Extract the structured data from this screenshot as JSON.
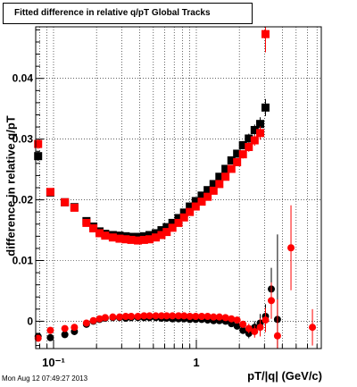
{
  "chart_data": {
    "type": "scatter",
    "title": "Fitted difference in relative q/pT  Global Tracks",
    "xlabel": "pT/|q| (GeV/c)",
    "ylabel": "difference in relative q/pT",
    "x_scale": "log",
    "xlim": [
      0.075,
      7.5
    ],
    "ylim": [
      -0.0045,
      0.0485
    ],
    "x_ticks": [
      {
        "value": 0.1,
        "label": "10⁻¹"
      },
      {
        "value": 1,
        "label": "1"
      }
    ],
    "y_ticks": [
      {
        "value": 0,
        "label": "0"
      },
      {
        "value": 0.01,
        "label": "0.01"
      },
      {
        "value": 0.02,
        "label": "0.02"
      },
      {
        "value": 0.03,
        "label": "0.03"
      },
      {
        "value": 0.04,
        "label": "0.04"
      }
    ],
    "grid": true,
    "colors": {
      "black_series": "#000000",
      "red_series": "#ff0000"
    },
    "series": [
      {
        "marker": "square",
        "color": "#000000",
        "points": [
          [
            0.078,
            0.0272,
            0.0008
          ],
          [
            0.095,
            0.0212,
            0.0004
          ],
          [
            0.12,
            0.0196,
            0.0003
          ],
          [
            0.14,
            0.0188,
            0.0003
          ],
          [
            0.17,
            0.0165,
            0.0002
          ],
          [
            0.19,
            0.0156,
            0.0002
          ],
          [
            0.21,
            0.0148,
            0.0002
          ],
          [
            0.23,
            0.0144,
            0.0002
          ],
          [
            0.26,
            0.0142,
            0.0002
          ],
          [
            0.29,
            0.0141,
            0.0002
          ],
          [
            0.32,
            0.014,
            0.0002
          ],
          [
            0.35,
            0.0139,
            0.0002
          ],
          [
            0.39,
            0.0139,
            0.0002
          ],
          [
            0.43,
            0.014,
            0.0002
          ],
          [
            0.47,
            0.0142,
            0.0002
          ],
          [
            0.52,
            0.0145,
            0.0002
          ],
          [
            0.57,
            0.015,
            0.0002
          ],
          [
            0.62,
            0.0155,
            0.0002
          ],
          [
            0.68,
            0.0162,
            0.0002
          ],
          [
            0.75,
            0.017,
            0.0002
          ],
          [
            0.82,
            0.0179,
            0.0002
          ],
          [
            0.9,
            0.0189,
            0.0002
          ],
          [
            0.99,
            0.0198,
            0.0003
          ],
          [
            1.09,
            0.0207,
            0.0003
          ],
          [
            1.2,
            0.0216,
            0.0003
          ],
          [
            1.32,
            0.0226,
            0.0003
          ],
          [
            1.45,
            0.0238,
            0.0003
          ],
          [
            1.6,
            0.0251,
            0.0004
          ],
          [
            1.76,
            0.0265,
            0.0005
          ],
          [
            1.93,
            0.0276,
            0.0006
          ],
          [
            2.12,
            0.029,
            0.0007
          ],
          [
            2.33,
            0.0301,
            0.0008
          ],
          [
            2.56,
            0.0315,
            0.0009
          ],
          [
            2.8,
            0.0325,
            0.0011
          ],
          [
            3.05,
            0.0352,
            0.0014
          ]
        ]
      },
      {
        "marker": "square",
        "color": "#ff0000",
        "points": [
          [
            0.078,
            0.0292,
            0.0008
          ],
          [
            0.095,
            0.0213,
            0.0004
          ],
          [
            0.12,
            0.0196,
            0.0003
          ],
          [
            0.14,
            0.0187,
            0.0003
          ],
          [
            0.17,
            0.0162,
            0.0002
          ],
          [
            0.19,
            0.0153,
            0.0002
          ],
          [
            0.21,
            0.0145,
            0.0002
          ],
          [
            0.23,
            0.0141,
            0.0002
          ],
          [
            0.26,
            0.0138,
            0.0002
          ],
          [
            0.29,
            0.0136,
            0.0002
          ],
          [
            0.32,
            0.0135,
            0.0002
          ],
          [
            0.35,
            0.0134,
            0.0002
          ],
          [
            0.39,
            0.0133,
            0.0002
          ],
          [
            0.43,
            0.0134,
            0.0002
          ],
          [
            0.47,
            0.0135,
            0.0002
          ],
          [
            0.52,
            0.0138,
            0.0002
          ],
          [
            0.57,
            0.0142,
            0.0002
          ],
          [
            0.62,
            0.0147,
            0.0002
          ],
          [
            0.68,
            0.0154,
            0.0002
          ],
          [
            0.75,
            0.0162,
            0.0002
          ],
          [
            0.82,
            0.0171,
            0.0002
          ],
          [
            0.9,
            0.018,
            0.0002
          ],
          [
            0.99,
            0.0189,
            0.0003
          ],
          [
            1.09,
            0.0197,
            0.0003
          ],
          [
            1.2,
            0.0205,
            0.0003
          ],
          [
            1.32,
            0.0215,
            0.0003
          ],
          [
            1.45,
            0.0226,
            0.0003
          ],
          [
            1.6,
            0.0238,
            0.0004
          ],
          [
            1.76,
            0.0251,
            0.0005
          ],
          [
            1.93,
            0.0262,
            0.0006
          ],
          [
            2.12,
            0.0275,
            0.0007
          ],
          [
            2.33,
            0.0287,
            0.0008
          ],
          [
            2.56,
            0.0298,
            0.0009
          ],
          [
            2.8,
            0.031,
            0.0011
          ],
          [
            3.05,
            0.0473,
            0.003
          ]
        ]
      },
      {
        "marker": "circle",
        "color": "#000000",
        "points": [
          [
            0.078,
            -0.0025,
            0.0004
          ],
          [
            0.095,
            -0.0027,
            0.0003
          ],
          [
            0.12,
            -0.0022,
            0.0002
          ],
          [
            0.14,
            -0.0017,
            0.0002
          ],
          [
            0.17,
            -0.0005,
            0.0002
          ],
          [
            0.19,
            0.0,
            0.0002
          ],
          [
            0.21,
            0.0003,
            0.0002
          ],
          [
            0.23,
            0.0005,
            0.0002
          ],
          [
            0.26,
            0.0006,
            0.0002
          ],
          [
            0.29,
            0.0006,
            0.0002
          ],
          [
            0.32,
            0.0005,
            0.0002
          ],
          [
            0.35,
            0.0006,
            0.0002
          ],
          [
            0.39,
            0.0006,
            0.0002
          ],
          [
            0.43,
            0.0006,
            0.0002
          ],
          [
            0.47,
            0.0006,
            0.0002
          ],
          [
            0.52,
            0.0006,
            0.0002
          ],
          [
            0.57,
            0.0005,
            0.0002
          ],
          [
            0.62,
            0.0005,
            0.0002
          ],
          [
            0.68,
            0.0004,
            0.0002
          ],
          [
            0.75,
            0.0004,
            0.0002
          ],
          [
            0.82,
            0.0004,
            0.0002
          ],
          [
            0.9,
            0.0003,
            0.0002
          ],
          [
            0.99,
            0.0003,
            0.0002
          ],
          [
            1.09,
            0.0003,
            0.0002
          ],
          [
            1.2,
            0.0002,
            0.0002
          ],
          [
            1.32,
            0.0001,
            0.0003
          ],
          [
            1.45,
            0.0001,
            0.0003
          ],
          [
            1.6,
            0.0,
            0.0003
          ],
          [
            1.76,
            -0.0004,
            0.0004
          ],
          [
            1.93,
            -0.0008,
            0.0005
          ],
          [
            2.12,
            -0.0015,
            0.0006
          ],
          [
            2.33,
            -0.002,
            0.0008
          ],
          [
            2.56,
            -0.001,
            0.001
          ],
          [
            2.8,
            -0.0003,
            0.0015
          ],
          [
            3.05,
            0.0008,
            0.002
          ],
          [
            3.35,
            0.0053,
            0.0035
          ],
          [
            3.7,
            0.0003,
            0.014
          ]
        ]
      },
      {
        "marker": "circle",
        "color": "#ff0000",
        "points": [
          [
            0.078,
            -0.0028,
            0.0004
          ],
          [
            0.095,
            -0.0015,
            0.0003
          ],
          [
            0.12,
            -0.0012,
            0.0002
          ],
          [
            0.14,
            -0.001,
            0.0002
          ],
          [
            0.17,
            -0.0003,
            0.0002
          ],
          [
            0.19,
            0.0001,
            0.0002
          ],
          [
            0.21,
            0.0004,
            0.0002
          ],
          [
            0.23,
            0.0006,
            0.0002
          ],
          [
            0.26,
            0.0007,
            0.0002
          ],
          [
            0.29,
            0.0007,
            0.0002
          ],
          [
            0.32,
            0.0008,
            0.0002
          ],
          [
            0.35,
            0.0008,
            0.0002
          ],
          [
            0.39,
            0.0008,
            0.0002
          ],
          [
            0.43,
            0.0009,
            0.0002
          ],
          [
            0.47,
            0.0009,
            0.0002
          ],
          [
            0.52,
            0.0009,
            0.0002
          ],
          [
            0.57,
            0.0009,
            0.0002
          ],
          [
            0.62,
            0.0009,
            0.0002
          ],
          [
            0.68,
            0.0009,
            0.0002
          ],
          [
            0.75,
            0.0009,
            0.0002
          ],
          [
            0.82,
            0.0009,
            0.0002
          ],
          [
            0.9,
            0.0008,
            0.0002
          ],
          [
            0.99,
            0.0008,
            0.0002
          ],
          [
            1.09,
            0.0008,
            0.0002
          ],
          [
            1.2,
            0.0008,
            0.0002
          ],
          [
            1.32,
            0.0007,
            0.0003
          ],
          [
            1.45,
            0.0007,
            0.0003
          ],
          [
            1.6,
            0.0006,
            0.0003
          ],
          [
            1.76,
            0.0004,
            0.0004
          ],
          [
            1.93,
            0.0002,
            0.0005
          ],
          [
            2.12,
            -0.0005,
            0.0006
          ],
          [
            2.33,
            -0.0012,
            0.0008
          ],
          [
            2.56,
            -0.0017,
            0.001
          ],
          [
            2.8,
            -0.001,
            0.0015
          ],
          [
            3.05,
            0.0002,
            0.002
          ],
          [
            3.35,
            0.0034,
            0.003
          ],
          [
            3.7,
            -0.0024,
            0.006
          ],
          [
            4.6,
            0.0121,
            0.007
          ],
          [
            6.5,
            -0.001,
            0.003
          ]
        ]
      }
    ]
  },
  "footer": {
    "timestamp": "Mon Aug 12 07:49:27 2013"
  }
}
